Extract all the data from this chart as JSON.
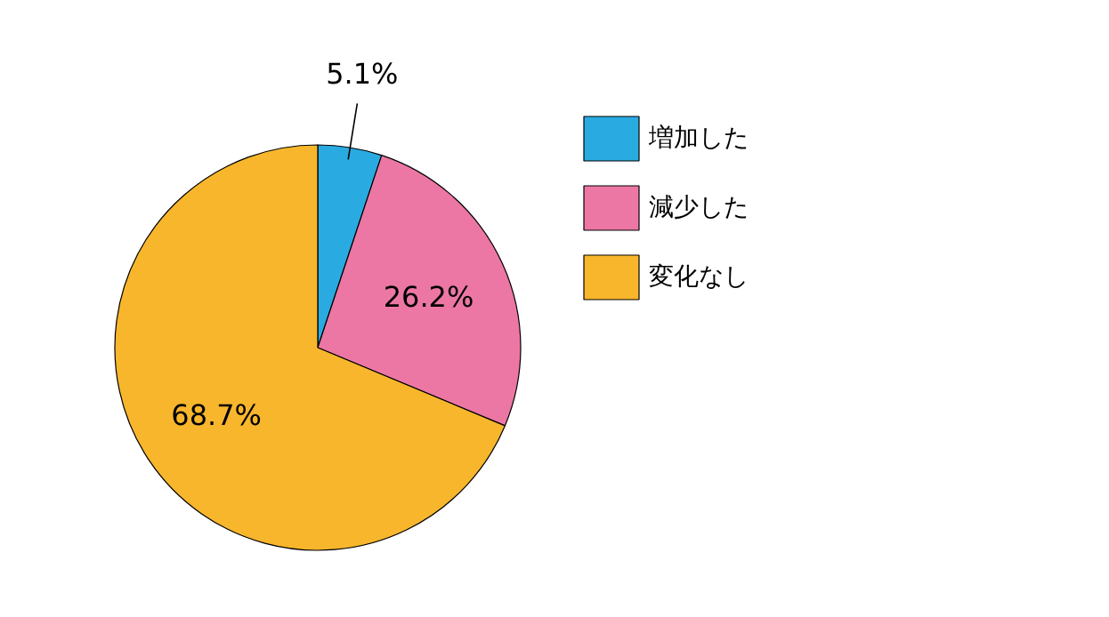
{
  "chart_data": {
    "type": "pie",
    "categories": [
      "増加した",
      "減少した",
      "変化なし"
    ],
    "values": [
      5.1,
      26.2,
      68.7
    ],
    "value_labels": [
      "5.1%",
      "26.2%",
      "68.7%"
    ],
    "colors": [
      "#29abe2",
      "#ec77a4",
      "#f8b62d"
    ],
    "legend": "right"
  }
}
